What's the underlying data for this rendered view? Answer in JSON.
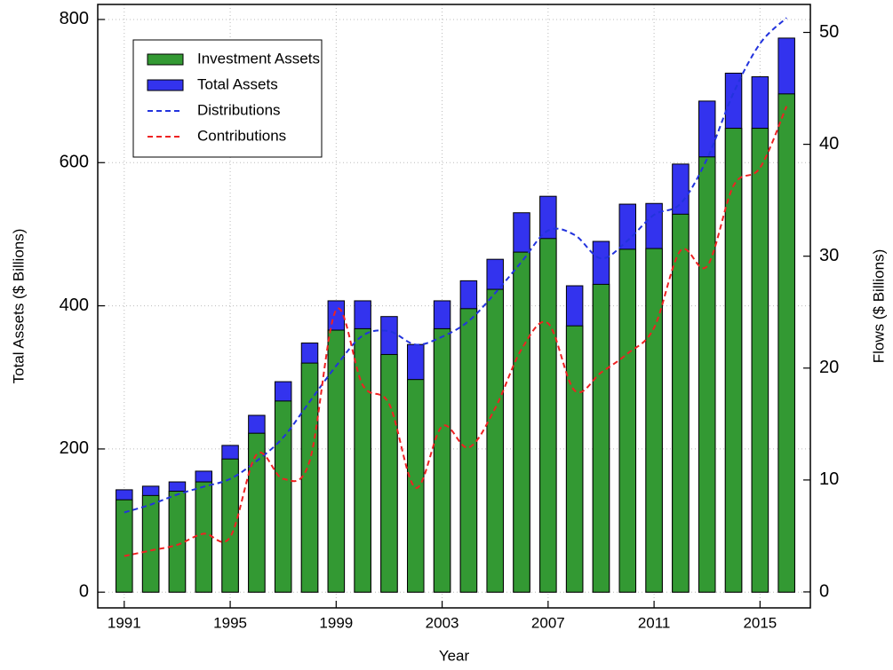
{
  "chart_data": {
    "type": "bar_line",
    "xlabel": "Year",
    "ylabel": "Total Assets ($ Billions)",
    "y2label": "Flows ($ Billions)",
    "x": [
      1991,
      1992,
      1993,
      1994,
      1995,
      1996,
      1997,
      1998,
      1999,
      2000,
      2001,
      2002,
      2003,
      2004,
      2005,
      2006,
      2007,
      2008,
      2009,
      2010,
      2011,
      2012,
      2013,
      2014,
      2015,
      2016
    ],
    "xlim": [
      1990,
      2016.9
    ],
    "xticks": [
      1991,
      1995,
      1999,
      2003,
      2007,
      2011,
      2015
    ],
    "ylim": [
      -22,
      821
    ],
    "yticks": [
      0,
      200,
      400,
      600,
      800
    ],
    "y2lim": [
      -1.43,
      52.5
    ],
    "y2ticks": [
      0,
      10,
      20,
      30,
      40,
      50
    ],
    "grid": true,
    "legend": "upper left",
    "series": [
      {
        "name": "Investment Assets",
        "kind": "bar",
        "color": "#339933",
        "values": [
          129,
          135,
          141,
          154,
          186,
          222,
          267,
          320,
          366,
          368,
          332,
          297,
          368,
          396,
          423,
          475,
          494,
          372,
          430,
          479,
          480,
          528,
          608,
          648,
          648,
          696
        ]
      },
      {
        "name": "Total Assets",
        "kind": "bar",
        "color": "#3333ee",
        "values": [
          143,
          148,
          154,
          169,
          205,
          247,
          294,
          348,
          407,
          407,
          385,
          346,
          407,
          435,
          465,
          530,
          553,
          428,
          490,
          542,
          543,
          598,
          686,
          725,
          720,
          774
        ]
      },
      {
        "name": "Distributions",
        "kind": "line",
        "axis": "y2",
        "color": "#2233dd",
        "values": [
          7.1,
          7.8,
          8.7,
          9.4,
          10.1,
          11.7,
          13.8,
          17.0,
          20.2,
          22.9,
          23.3,
          22.1,
          22.8,
          24.2,
          26.7,
          29.5,
          32.3,
          31.9,
          29.8,
          31.4,
          33.7,
          34.7,
          38.7,
          44.6,
          49.0,
          51.3
        ]
      },
      {
        "name": "Contributions",
        "kind": "line",
        "axis": "y2",
        "color": "#ee2222",
        "values": [
          3.2,
          3.7,
          4.2,
          5.2,
          4.9,
          12.3,
          10.1,
          11.7,
          25.2,
          18.5,
          16.8,
          9.3,
          14.8,
          12.9,
          16.4,
          21.7,
          24.0,
          18.0,
          19.6,
          21.3,
          23.6,
          30.5,
          29.1,
          36.3,
          37.9,
          43.4
        ]
      }
    ]
  }
}
